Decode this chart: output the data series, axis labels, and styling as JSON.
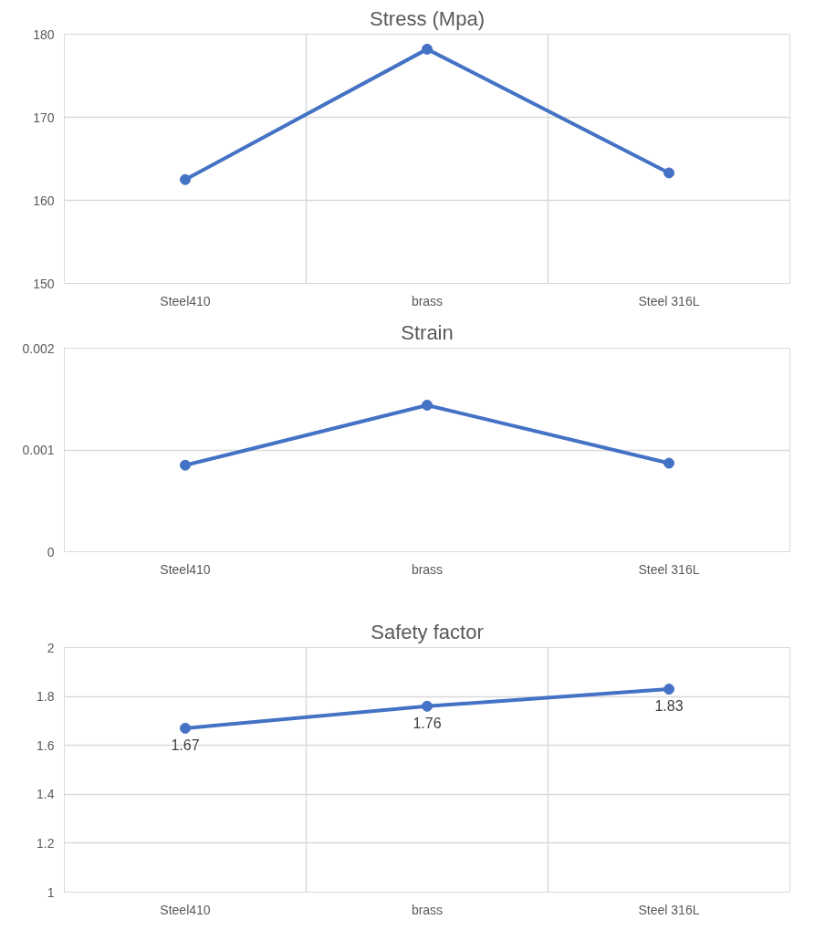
{
  "chart_data": [
    {
      "type": "line",
      "title": "Stress (Mpa)",
      "categories": [
        "Steel410",
        "brass",
        "Steel 316L"
      ],
      "series": [
        {
          "color": "#4472c4",
          "values": [
            162.5,
            178.2,
            163.3
          ]
        }
      ],
      "ylim": [
        150,
        180
      ],
      "yticks": [
        150,
        160,
        170,
        180
      ],
      "grid": true,
      "marker": "circle"
    },
    {
      "type": "line",
      "title": "Strain",
      "categories": [
        "Steel410",
        "brass",
        "Steel 316L"
      ],
      "series": [
        {
          "color": "#4472c4",
          "values": [
            0.00085,
            0.00144,
            0.00087
          ]
        }
      ],
      "ylim": [
        0,
        0.002
      ],
      "yticks": [
        0,
        0.001,
        0.002
      ],
      "grid": "y",
      "marker": "circle"
    },
    {
      "type": "line",
      "title": "Safety factor",
      "categories": [
        "Steel410",
        "brass",
        "Steel 316L"
      ],
      "series": [
        {
          "color": "#4472c4",
          "values": [
            1.67,
            1.76,
            1.83
          ]
        }
      ],
      "ylim": [
        1,
        2
      ],
      "yticks": [
        1,
        1.2,
        1.4,
        1.6,
        1.8,
        2
      ],
      "grid": true,
      "marker": "circle",
      "data_labels": true
    }
  ]
}
